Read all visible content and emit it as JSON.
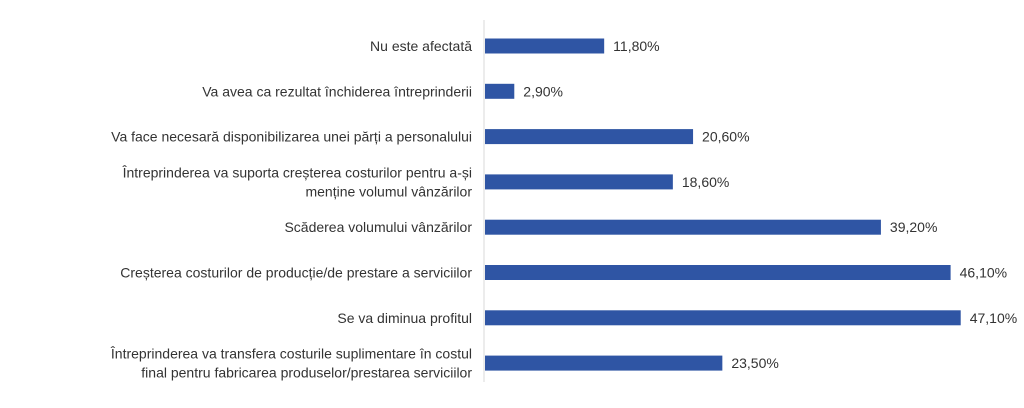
{
  "chart_data": {
    "type": "bar",
    "orientation": "horizontal",
    "title": "",
    "xlabel": "",
    "ylabel": "",
    "grid": false,
    "legend": "none",
    "bar_color": "#2f55a4",
    "xlim": [
      0,
      50
    ],
    "categories": [
      [
        "Nu este afectată"
      ],
      [
        "Va avea ca rezultat închiderea întreprinderii"
      ],
      [
        "Va face necesară disponibilizarea unei părți a personalului"
      ],
      [
        "Întreprinderea va suporta creșterea costurilor pentru a-și",
        "menține volumul vânzărilor"
      ],
      [
        "Scăderea volumului vânzărilor"
      ],
      [
        "Creșterea costurilor de producție/de prestare a serviciilor"
      ],
      [
        "Se va diminua profitul"
      ],
      [
        "Întreprinderea va transfera costurile suplimentare în costul",
        "final pentru fabricarea produselor/prestarea serviciilor"
      ]
    ],
    "values": [
      11.8,
      2.9,
      20.6,
      18.6,
      39.2,
      46.1,
      47.1,
      23.5
    ],
    "value_labels": [
      "11,80%",
      "2,90%",
      "20,60%",
      "18,60%",
      "39,20%",
      "46,10%",
      "47,10%",
      "23,50%"
    ]
  }
}
